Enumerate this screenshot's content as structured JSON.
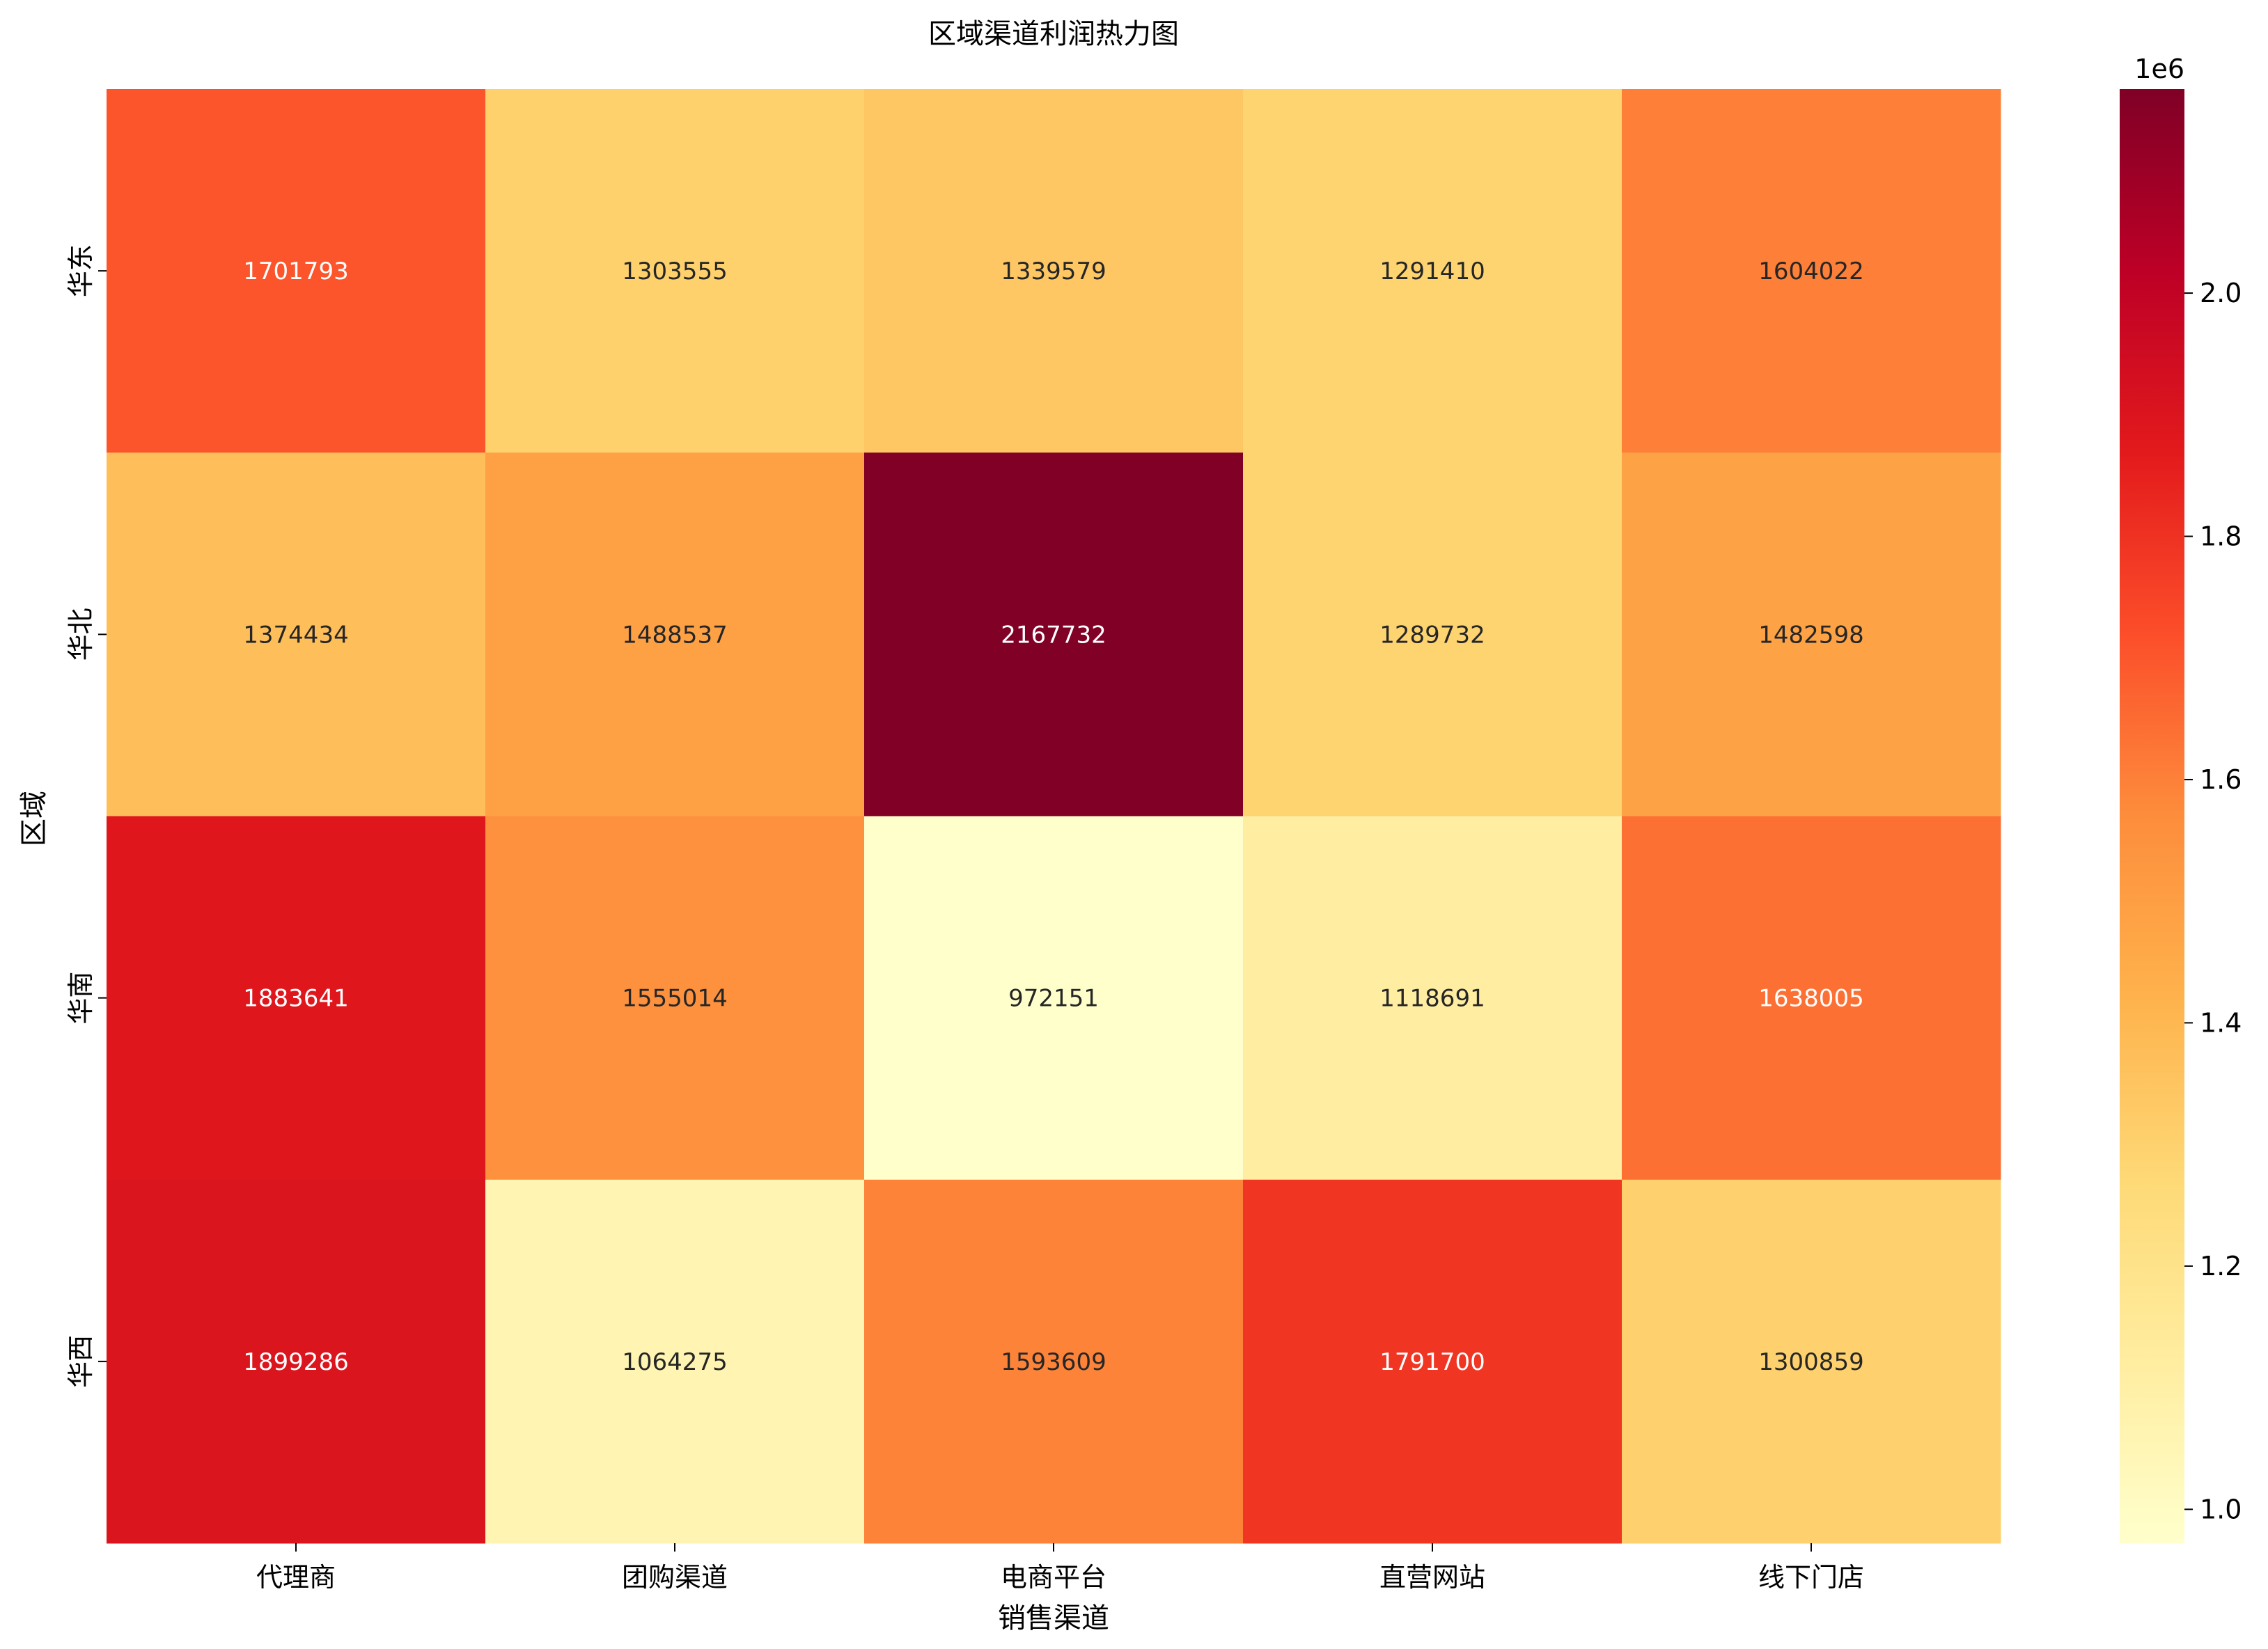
{
  "chart_data": {
    "type": "heatmap",
    "title": "区域渠道利润热力图",
    "xlabel": "销售渠道",
    "ylabel": "区域",
    "x_categories": [
      "代理商",
      "团购渠道",
      "电商平台",
      "直营网站",
      "线下门店"
    ],
    "y_categories": [
      "华东",
      "华北",
      "华南",
      "华西"
    ],
    "values": [
      [
        1701793,
        1303555,
        1339579,
        1291410,
        1604022
      ],
      [
        1374434,
        1488537,
        2167732,
        1289732,
        1482598
      ],
      [
        1883641,
        1555014,
        972151,
        1118691,
        1638005
      ],
      [
        1899286,
        1064275,
        1593609,
        1791700,
        1300859
      ]
    ],
    "colormap": "YlOrRd",
    "color_range": [
      972151,
      2167732
    ],
    "colorbar": {
      "ticks": [
        1.0,
        1.2,
        1.4,
        1.6,
        1.8,
        2.0
      ],
      "tick_labels": [
        "1.0",
        "1.2",
        "1.4",
        "1.6",
        "1.8",
        "2.0"
      ],
      "offset_label": "1e6"
    },
    "annotations": true,
    "grid": false
  }
}
